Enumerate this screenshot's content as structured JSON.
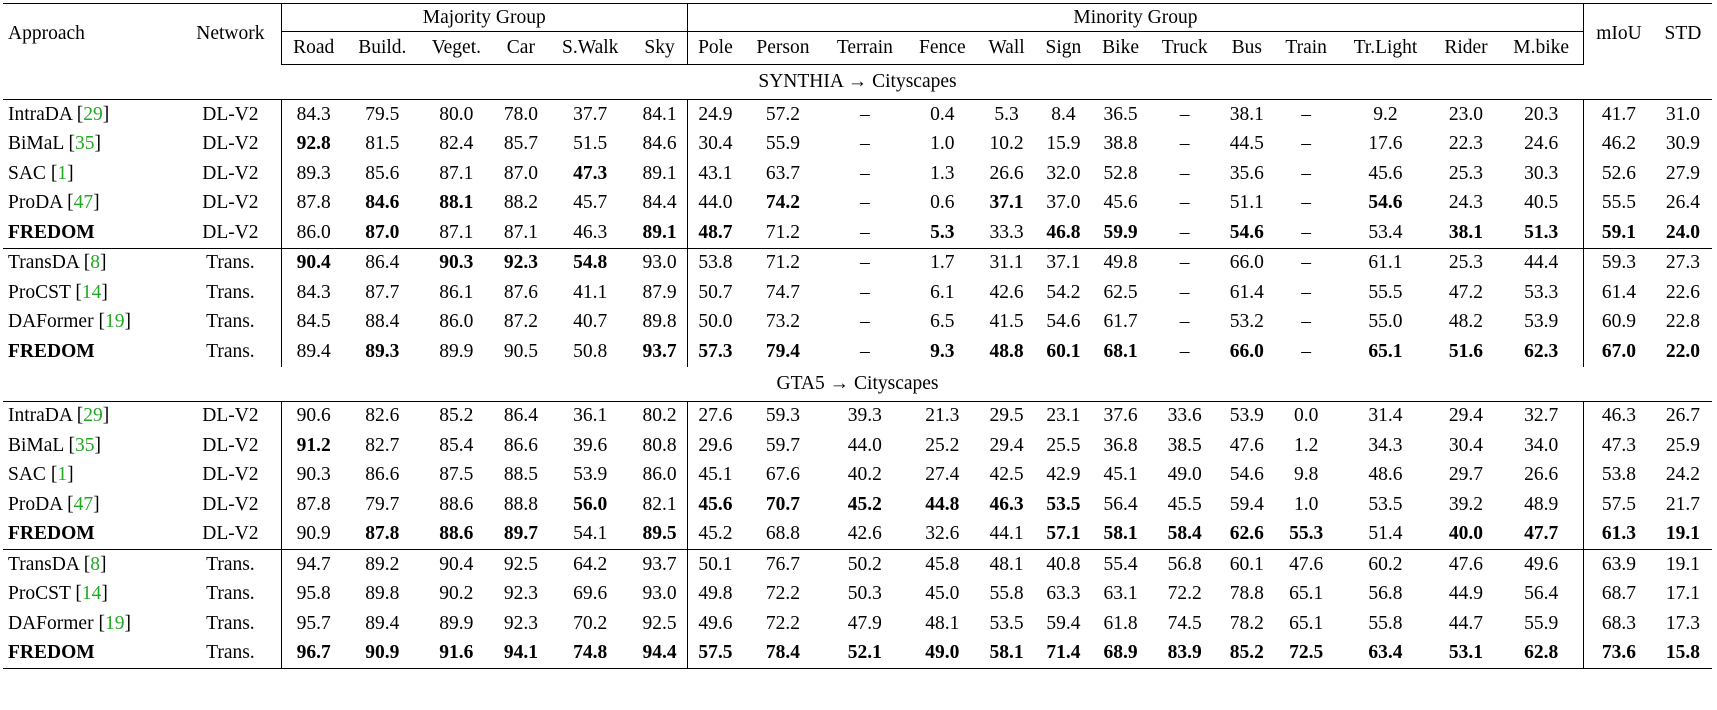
{
  "header": {
    "approach": "Approach",
    "network": "Network",
    "majority": "Majority Group",
    "minority": "Minority Group",
    "miou": "mIoU",
    "std": "STD",
    "majority_classes": [
      "Road",
      "Build.",
      "Veget.",
      "Car",
      "S.Walk",
      "Sky"
    ],
    "minority_classes": [
      "Pole",
      "Person",
      "Terrain",
      "Fence",
      "Wall",
      "Sign",
      "Bike",
      "Truck",
      "Bus",
      "Train",
      "Tr.Light",
      "Rider",
      "M.bike"
    ]
  },
  "sections": [
    {
      "title": "SYNTHIA → Cityscapes",
      "rows": [
        {
          "name": "IntraDA",
          "cite": "29",
          "net": "DL-V2",
          "vals": [
            "84.3",
            "79.5",
            "80.0",
            "78.0",
            "37.7",
            "84.1",
            "24.9",
            "57.2",
            "–",
            "0.4",
            "5.3",
            "8.4",
            "36.5",
            "–",
            "38.1",
            "–",
            "9.2",
            "23.0",
            "20.3",
            "41.7",
            "31.0"
          ],
          "bold": []
        },
        {
          "name": "BiMaL",
          "cite": "35",
          "net": "DL-V2",
          "vals": [
            "92.8",
            "81.5",
            "82.4",
            "85.7",
            "51.5",
            "84.6",
            "30.4",
            "55.9",
            "–",
            "1.0",
            "10.2",
            "15.9",
            "38.8",
            "–",
            "44.5",
            "–",
            "17.6",
            "22.3",
            "24.6",
            "46.2",
            "30.9"
          ],
          "bold": [
            0
          ]
        },
        {
          "name": "SAC",
          "cite": "1",
          "net": "DL-V2",
          "vals": [
            "89.3",
            "85.6",
            "87.1",
            "87.0",
            "47.3",
            "89.1",
            "43.1",
            "63.7",
            "–",
            "1.3",
            "26.6",
            "32.0",
            "52.8",
            "–",
            "35.6",
            "–",
            "45.6",
            "25.3",
            "30.3",
            "52.6",
            "27.9"
          ],
          "bold": [
            4
          ]
        },
        {
          "name": "ProDA",
          "cite": "47",
          "net": "DL-V2",
          "vals": [
            "87.8",
            "84.6",
            "88.1",
            "88.2",
            "45.7",
            "84.4",
            "44.0",
            "74.2",
            "–",
            "0.6",
            "37.1",
            "37.0",
            "45.6",
            "–",
            "51.1",
            "–",
            "54.6",
            "24.3",
            "40.5",
            "55.5",
            "26.4"
          ],
          "bold": [
            1,
            2,
            7,
            10,
            16
          ]
        },
        {
          "name": "FREDOM",
          "cite": "",
          "net": "DL-V2",
          "name_bold": true,
          "vals": [
            "86.0",
            "87.0",
            "87.1",
            "87.1",
            "46.3",
            "89.1",
            "48.7",
            "71.2",
            "–",
            "5.3",
            "33.3",
            "46.8",
            "59.9",
            "–",
            "54.6",
            "–",
            "53.4",
            "38.1",
            "51.3",
            "59.1",
            "24.0"
          ],
          "bold": [
            1,
            5,
            6,
            9,
            11,
            12,
            14,
            17,
            18,
            19,
            20
          ]
        },
        {
          "name": "TransDA",
          "cite": "8",
          "net": "Trans.",
          "sep": true,
          "vals": [
            "90.4",
            "86.4",
            "90.3",
            "92.3",
            "54.8",
            "93.0",
            "53.8",
            "71.2",
            "–",
            "1.7",
            "31.1",
            "37.1",
            "49.8",
            "–",
            "66.0",
            "–",
            "61.1",
            "25.3",
            "44.4",
            "59.3",
            "27.3"
          ],
          "bold": [
            0,
            2,
            3,
            4
          ]
        },
        {
          "name": "ProCST",
          "cite": "14",
          "net": "Trans.",
          "vals": [
            "84.3",
            "87.7",
            "86.1",
            "87.6",
            "41.1",
            "87.9",
            "50.7",
            "74.7",
            "–",
            "6.1",
            "42.6",
            "54.2",
            "62.5",
            "–",
            "61.4",
            "–",
            "55.5",
            "47.2",
            "53.3",
            "61.4",
            "22.6"
          ],
          "bold": []
        },
        {
          "name": "DAFormer",
          "cite": "19",
          "net": "Trans.",
          "vals": [
            "84.5",
            "88.4",
            "86.0",
            "87.2",
            "40.7",
            "89.8",
            "50.0",
            "73.2",
            "–",
            "6.5",
            "41.5",
            "54.6",
            "61.7",
            "–",
            "53.2",
            "–",
            "55.0",
            "48.2",
            "53.9",
            "60.9",
            "22.8"
          ],
          "bold": []
        },
        {
          "name": "FREDOM",
          "cite": "",
          "net": "Trans.",
          "name_bold": true,
          "vals": [
            "89.4",
            "89.3",
            "89.9",
            "90.5",
            "50.8",
            "93.7",
            "57.3",
            "79.4",
            "–",
            "9.3",
            "48.8",
            "60.1",
            "68.1",
            "–",
            "66.0",
            "–",
            "65.1",
            "51.6",
            "62.3",
            "67.0",
            "22.0"
          ],
          "bold": [
            1,
            5,
            6,
            7,
            9,
            10,
            11,
            12,
            14,
            16,
            17,
            18,
            19,
            20
          ]
        }
      ]
    },
    {
      "title": "GTA5 → Cityscapes",
      "rows": [
        {
          "name": "IntraDA",
          "cite": "29",
          "net": "DL-V2",
          "vals": [
            "90.6",
            "82.6",
            "85.2",
            "86.4",
            "36.1",
            "80.2",
            "27.6",
            "59.3",
            "39.3",
            "21.3",
            "29.5",
            "23.1",
            "37.6",
            "33.6",
            "53.9",
            "0.0",
            "31.4",
            "29.4",
            "32.7",
            "46.3",
            "26.7"
          ],
          "bold": []
        },
        {
          "name": "BiMaL",
          "cite": "35",
          "net": "DL-V2",
          "vals": [
            "91.2",
            "82.7",
            "85.4",
            "86.6",
            "39.6",
            "80.8",
            "29.6",
            "59.7",
            "44.0",
            "25.2",
            "29.4",
            "25.5",
            "36.8",
            "38.5",
            "47.6",
            "1.2",
            "34.3",
            "30.4",
            "34.0",
            "47.3",
            "25.9"
          ],
          "bold": [
            0
          ]
        },
        {
          "name": "SAC",
          "cite": "1",
          "net": "DL-V2",
          "vals": [
            "90.3",
            "86.6",
            "87.5",
            "88.5",
            "53.9",
            "86.0",
            "45.1",
            "67.6",
            "40.2",
            "27.4",
            "42.5",
            "42.9",
            "45.1",
            "49.0",
            "54.6",
            "9.8",
            "48.6",
            "29.7",
            "26.6",
            "53.8",
            "24.2"
          ],
          "bold": []
        },
        {
          "name": "ProDA",
          "cite": "47",
          "net": "DL-V2",
          "vals": [
            "87.8",
            "79.7",
            "88.6",
            "88.8",
            "56.0",
            "82.1",
            "45.6",
            "70.7",
            "45.2",
            "44.8",
            "46.3",
            "53.5",
            "56.4",
            "45.5",
            "59.4",
            "1.0",
            "53.5",
            "39.2",
            "48.9",
            "57.5",
            "21.7"
          ],
          "bold": [
            4,
            6,
            7,
            8,
            9,
            10,
            11
          ]
        },
        {
          "name": "FREDOM",
          "cite": "",
          "net": "DL-V2",
          "name_bold": true,
          "vals": [
            "90.9",
            "87.8",
            "88.6",
            "89.7",
            "54.1",
            "89.5",
            "45.2",
            "68.8",
            "42.6",
            "32.6",
            "44.1",
            "57.1",
            "58.1",
            "58.4",
            "62.6",
            "55.3",
            "51.4",
            "40.0",
            "47.7",
            "61.3",
            "19.1"
          ],
          "bold": [
            1,
            2,
            3,
            5,
            11,
            12,
            13,
            14,
            15,
            17,
            18,
            19,
            20
          ]
        },
        {
          "name": "TransDA",
          "cite": "8",
          "net": "Trans.",
          "sep": true,
          "vals": [
            "94.7",
            "89.2",
            "90.4",
            "92.5",
            "64.2",
            "93.7",
            "50.1",
            "76.7",
            "50.2",
            "45.8",
            "48.1",
            "40.8",
            "55.4",
            "56.8",
            "60.1",
            "47.6",
            "60.2",
            "47.6",
            "49.6",
            "63.9",
            "19.1"
          ],
          "bold": []
        },
        {
          "name": "ProCST",
          "cite": "14",
          "net": "Trans.",
          "vals": [
            "95.8",
            "89.8",
            "90.2",
            "92.3",
            "69.6",
            "93.0",
            "49.8",
            "72.2",
            "50.3",
            "45.0",
            "55.8",
            "63.3",
            "63.1",
            "72.2",
            "78.8",
            "65.1",
            "56.8",
            "44.9",
            "56.4",
            "68.7",
            "17.1"
          ],
          "bold": []
        },
        {
          "name": "DAFormer",
          "cite": "19",
          "net": "Trans.",
          "vals": [
            "95.7",
            "89.4",
            "89.9",
            "92.3",
            "70.2",
            "92.5",
            "49.6",
            "72.2",
            "47.9",
            "48.1",
            "53.5",
            "59.4",
            "61.8",
            "74.5",
            "78.2",
            "65.1",
            "55.8",
            "44.7",
            "55.9",
            "68.3",
            "17.3"
          ],
          "bold": []
        },
        {
          "name": "FREDOM",
          "cite": "",
          "net": "Trans.",
          "name_bold": true,
          "vals": [
            "96.7",
            "90.9",
            "91.6",
            "94.1",
            "74.8",
            "94.4",
            "57.5",
            "78.4",
            "52.1",
            "49.0",
            "58.1",
            "71.4",
            "68.9",
            "83.9",
            "85.2",
            "72.5",
            "63.4",
            "53.1",
            "62.8",
            "73.6",
            "15.8"
          ],
          "bold": [
            0,
            1,
            2,
            3,
            4,
            5,
            6,
            7,
            8,
            9,
            10,
            11,
            12,
            13,
            14,
            15,
            16,
            17,
            18,
            19,
            20
          ]
        }
      ]
    }
  ]
}
